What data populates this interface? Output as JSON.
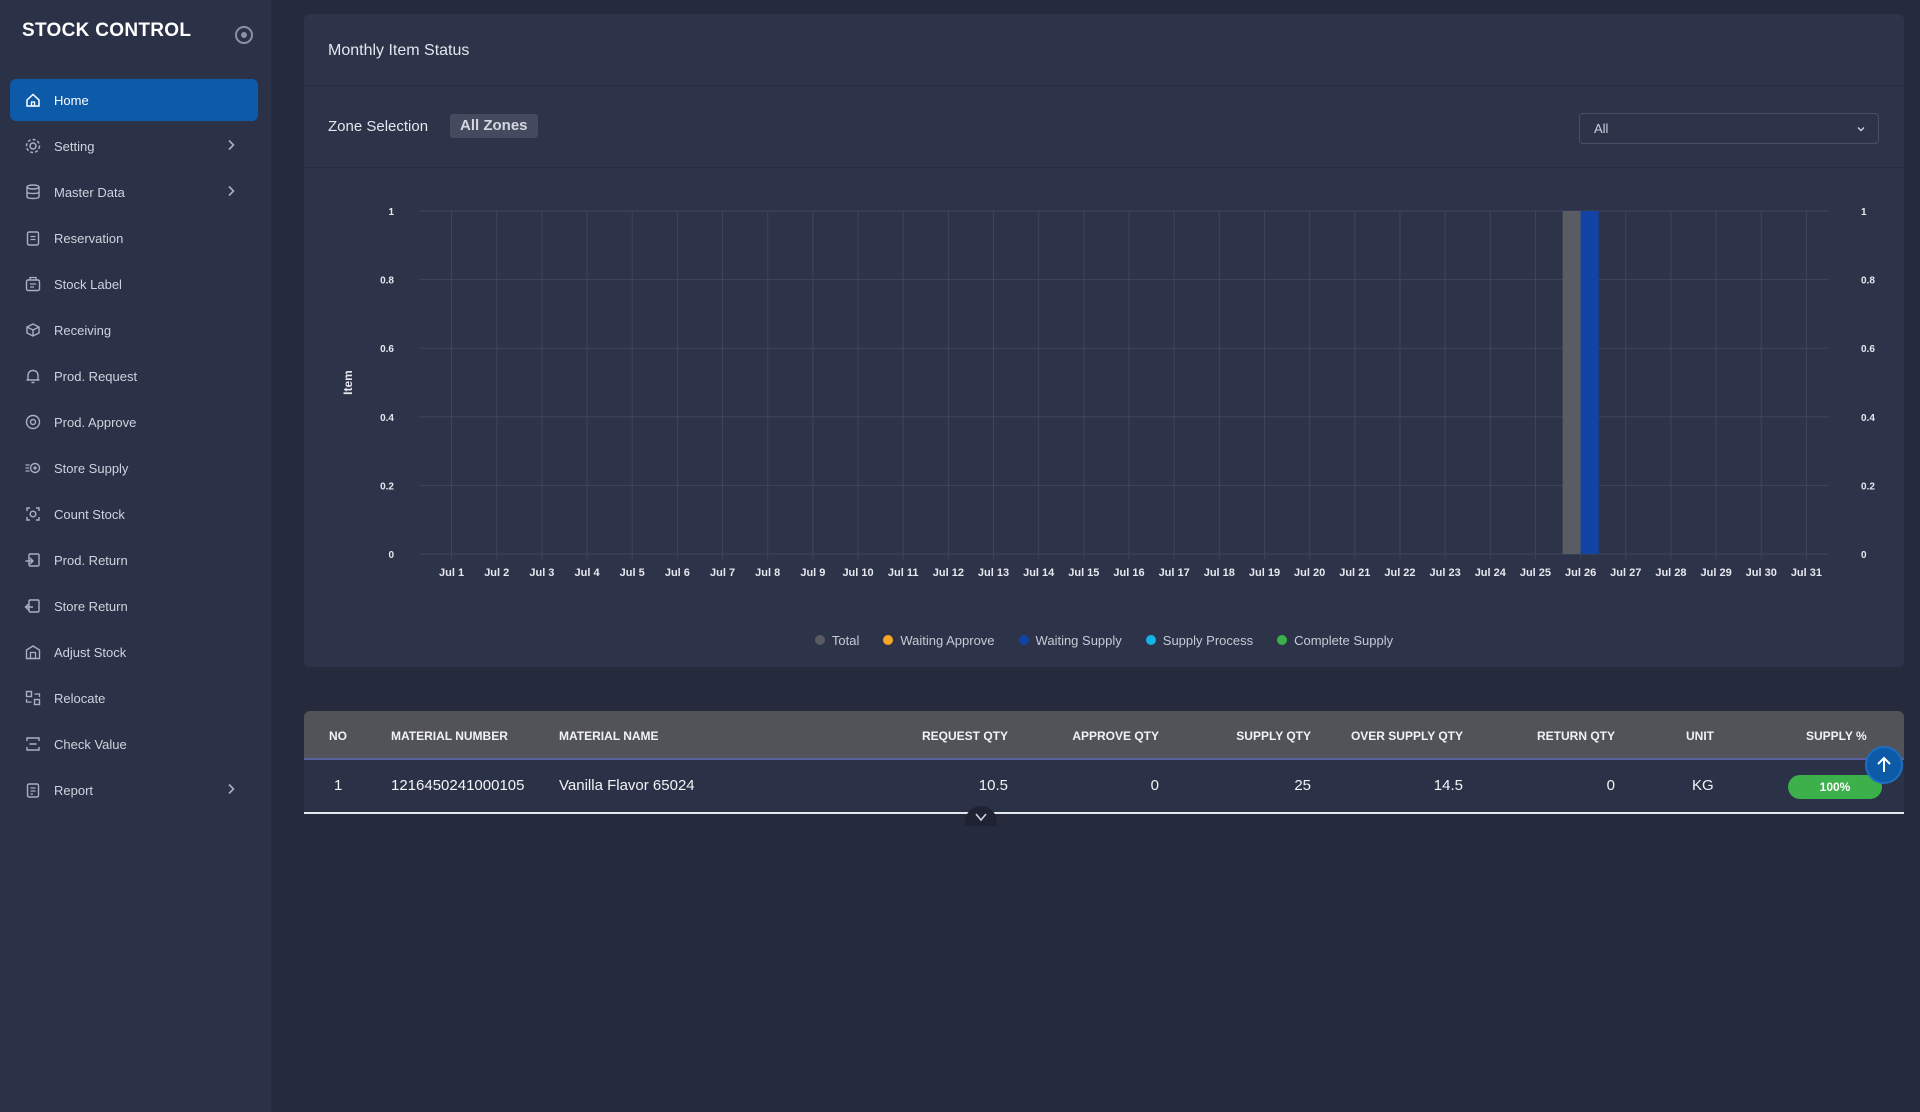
{
  "app": {
    "title": "STOCK CONTROL"
  },
  "sidebar": {
    "items": [
      {
        "label": "Home",
        "icon": "home-icon",
        "active": true,
        "has_submenu": false
      },
      {
        "label": "Setting",
        "icon": "gear-icon",
        "active": false,
        "has_submenu": true
      },
      {
        "label": "Master Data",
        "icon": "database-icon",
        "active": false,
        "has_submenu": true
      },
      {
        "label": "Reservation",
        "icon": "clipboard-icon",
        "active": false,
        "has_submenu": false
      },
      {
        "label": "Stock Label",
        "icon": "label-icon",
        "active": false,
        "has_submenu": false
      },
      {
        "label": "Receiving",
        "icon": "box-receive-icon",
        "active": false,
        "has_submenu": false
      },
      {
        "label": "Prod. Request",
        "icon": "bell-icon",
        "active": false,
        "has_submenu": false
      },
      {
        "label": "Prod. Approve",
        "icon": "gear-check-icon",
        "active": false,
        "has_submenu": false
      },
      {
        "label": "Store Supply",
        "icon": "fast-gear-icon",
        "active": false,
        "has_submenu": false
      },
      {
        "label": "Count Stock",
        "icon": "scan-icon",
        "active": false,
        "has_submenu": false
      },
      {
        "label": "Prod. Return",
        "icon": "return-in-icon",
        "active": false,
        "has_submenu": false
      },
      {
        "label": "Store Return",
        "icon": "return-out-icon",
        "active": false,
        "has_submenu": false
      },
      {
        "label": "Adjust Stock",
        "icon": "warehouse-icon",
        "active": false,
        "has_submenu": false
      },
      {
        "label": "Relocate",
        "icon": "relocate-icon",
        "active": false,
        "has_submenu": false
      },
      {
        "label": "Check Value",
        "icon": "check-value-icon",
        "active": false,
        "has_submenu": false
      },
      {
        "label": "Report",
        "icon": "report-icon",
        "active": false,
        "has_submenu": true
      }
    ]
  },
  "card": {
    "title": "Monthly Item Status",
    "zone_label": "Zone Selection",
    "zone_chip": "All Zones",
    "zone_select_value": "All"
  },
  "chart_data": {
    "type": "bar",
    "title": "",
    "xlabel": "",
    "ylabel": "Item",
    "ylim": [
      0,
      1
    ],
    "yticks": [
      0,
      0.2,
      0.4,
      0.6,
      0.8,
      1
    ],
    "ytick_labels": [
      "0",
      "0.2",
      "0.4",
      "0.6",
      "0.8",
      "1"
    ],
    "right_axis_ticks": [
      "0",
      "0.2",
      "0.4",
      "0.6",
      "0.8",
      "1"
    ],
    "grid": true,
    "legend_position": "bottom",
    "categories": [
      "Jul 1",
      "Jul 2",
      "Jul 3",
      "Jul 4",
      "Jul 5",
      "Jul 6",
      "Jul 7",
      "Jul 8",
      "Jul 9",
      "Jul 10",
      "Jul 11",
      "Jul 12",
      "Jul 13",
      "Jul 14",
      "Jul 15",
      "Jul 16",
      "Jul 17",
      "Jul 18",
      "Jul 19",
      "Jul 20",
      "Jul 21",
      "Jul 22",
      "Jul 23",
      "Jul 24",
      "Jul 25",
      "Jul 26",
      "Jul 27",
      "Jul 28",
      "Jul 29",
      "Jul 30",
      "Jul 31"
    ],
    "series": [
      {
        "name": "Total",
        "color": "#5a5c63",
        "values": [
          0,
          0,
          0,
          0,
          0,
          0,
          0,
          0,
          0,
          0,
          0,
          0,
          0,
          0,
          0,
          0,
          0,
          0,
          0,
          0,
          0,
          0,
          0,
          0,
          0,
          1,
          0,
          0,
          0,
          0,
          0
        ]
      },
      {
        "name": "Waiting Approve",
        "color": "#f5a623",
        "values": [
          0,
          0,
          0,
          0,
          0,
          0,
          0,
          0,
          0,
          0,
          0,
          0,
          0,
          0,
          0,
          0,
          0,
          0,
          0,
          0,
          0,
          0,
          0,
          0,
          0,
          0,
          0,
          0,
          0,
          0,
          0
        ]
      },
      {
        "name": "Waiting Supply",
        "color": "#1244a6",
        "values": [
          0,
          0,
          0,
          0,
          0,
          0,
          0,
          0,
          0,
          0,
          0,
          0,
          0,
          0,
          0,
          0,
          0,
          0,
          0,
          0,
          0,
          0,
          0,
          0,
          0,
          1,
          0,
          0,
          0,
          0,
          0
        ]
      },
      {
        "name": "Supply Process",
        "color": "#13b4e6",
        "values": [
          0,
          0,
          0,
          0,
          0,
          0,
          0,
          0,
          0,
          0,
          0,
          0,
          0,
          0,
          0,
          0,
          0,
          0,
          0,
          0,
          0,
          0,
          0,
          0,
          0,
          0,
          0,
          0,
          0,
          0,
          0
        ]
      },
      {
        "name": "Complete Supply",
        "color": "#3cb04a",
        "values": [
          0,
          0,
          0,
          0,
          0,
          0,
          0,
          0,
          0,
          0,
          0,
          0,
          0,
          0,
          0,
          0,
          0,
          0,
          0,
          0,
          0,
          0,
          0,
          0,
          0,
          0,
          0,
          0,
          0,
          0,
          0
        ]
      }
    ]
  },
  "table": {
    "columns": [
      "NO",
      "MATERIAL NUMBER",
      "MATERIAL NAME",
      "REQUEST QTY",
      "APPROVE QTY",
      "SUPPLY QTY",
      "OVER SUPPLY QTY",
      "RETURN QTY",
      "UNIT",
      "SUPPLY %"
    ],
    "rows": [
      {
        "no": "1",
        "material_number": "1216450241000105",
        "material_name": "Vanilla Flavor 65024",
        "request_qty": "10.5",
        "approve_qty": "0",
        "supply_qty": "25",
        "over_supply_qty": "14.5",
        "return_qty": "0",
        "unit": "KG",
        "supply_pct": "100%"
      }
    ]
  }
}
